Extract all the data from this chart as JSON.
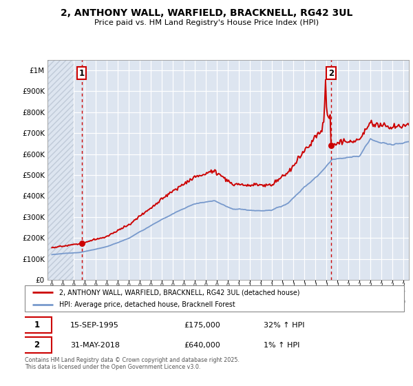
{
  "title": "2, ANTHONY WALL, WARFIELD, BRACKNELL, RG42 3UL",
  "subtitle": "Price paid vs. HM Land Registry's House Price Index (HPI)",
  "legend_line1": "2, ANTHONY WALL, WARFIELD, BRACKNELL, RG42 3UL (detached house)",
  "legend_line2": "HPI: Average price, detached house, Bracknell Forest",
  "footer": "Contains HM Land Registry data © Crown copyright and database right 2025.\nThis data is licensed under the Open Government Licence v3.0.",
  "sale1_label": "1",
  "sale1_date": "15-SEP-1995",
  "sale1_price": 175000,
  "sale1_price_str": "£175,000",
  "sale1_hpi": "32% ↑ HPI",
  "sale1_year": 1995.71,
  "sale2_label": "2",
  "sale2_date": "31-MAY-2018",
  "sale2_price": 640000,
  "sale2_price_str": "£640,000",
  "sale2_hpi": "1% ↑ HPI",
  "sale2_year": 2018.42,
  "red_color": "#cc0000",
  "blue_color": "#7799cc",
  "bg_color": "#ffffff",
  "plot_bg": "#dde5f0",
  "hatch_color": "#c0cad8",
  "ylim_max": 1050000,
  "ylim_min": 0,
  "xmin": 1992.6,
  "xmax": 2025.5,
  "yticks": [
    0,
    100000,
    200000,
    300000,
    400000,
    500000,
    600000,
    700000,
    800000,
    900000,
    1000000
  ],
  "xtick_years": [
    1993,
    1994,
    1995,
    1996,
    1997,
    1998,
    1999,
    2000,
    2001,
    2002,
    2003,
    2004,
    2005,
    2006,
    2007,
    2008,
    2009,
    2010,
    2011,
    2012,
    2013,
    2014,
    2015,
    2016,
    2017,
    2018,
    2019,
    2020,
    2021,
    2022,
    2023,
    2024,
    2025
  ]
}
